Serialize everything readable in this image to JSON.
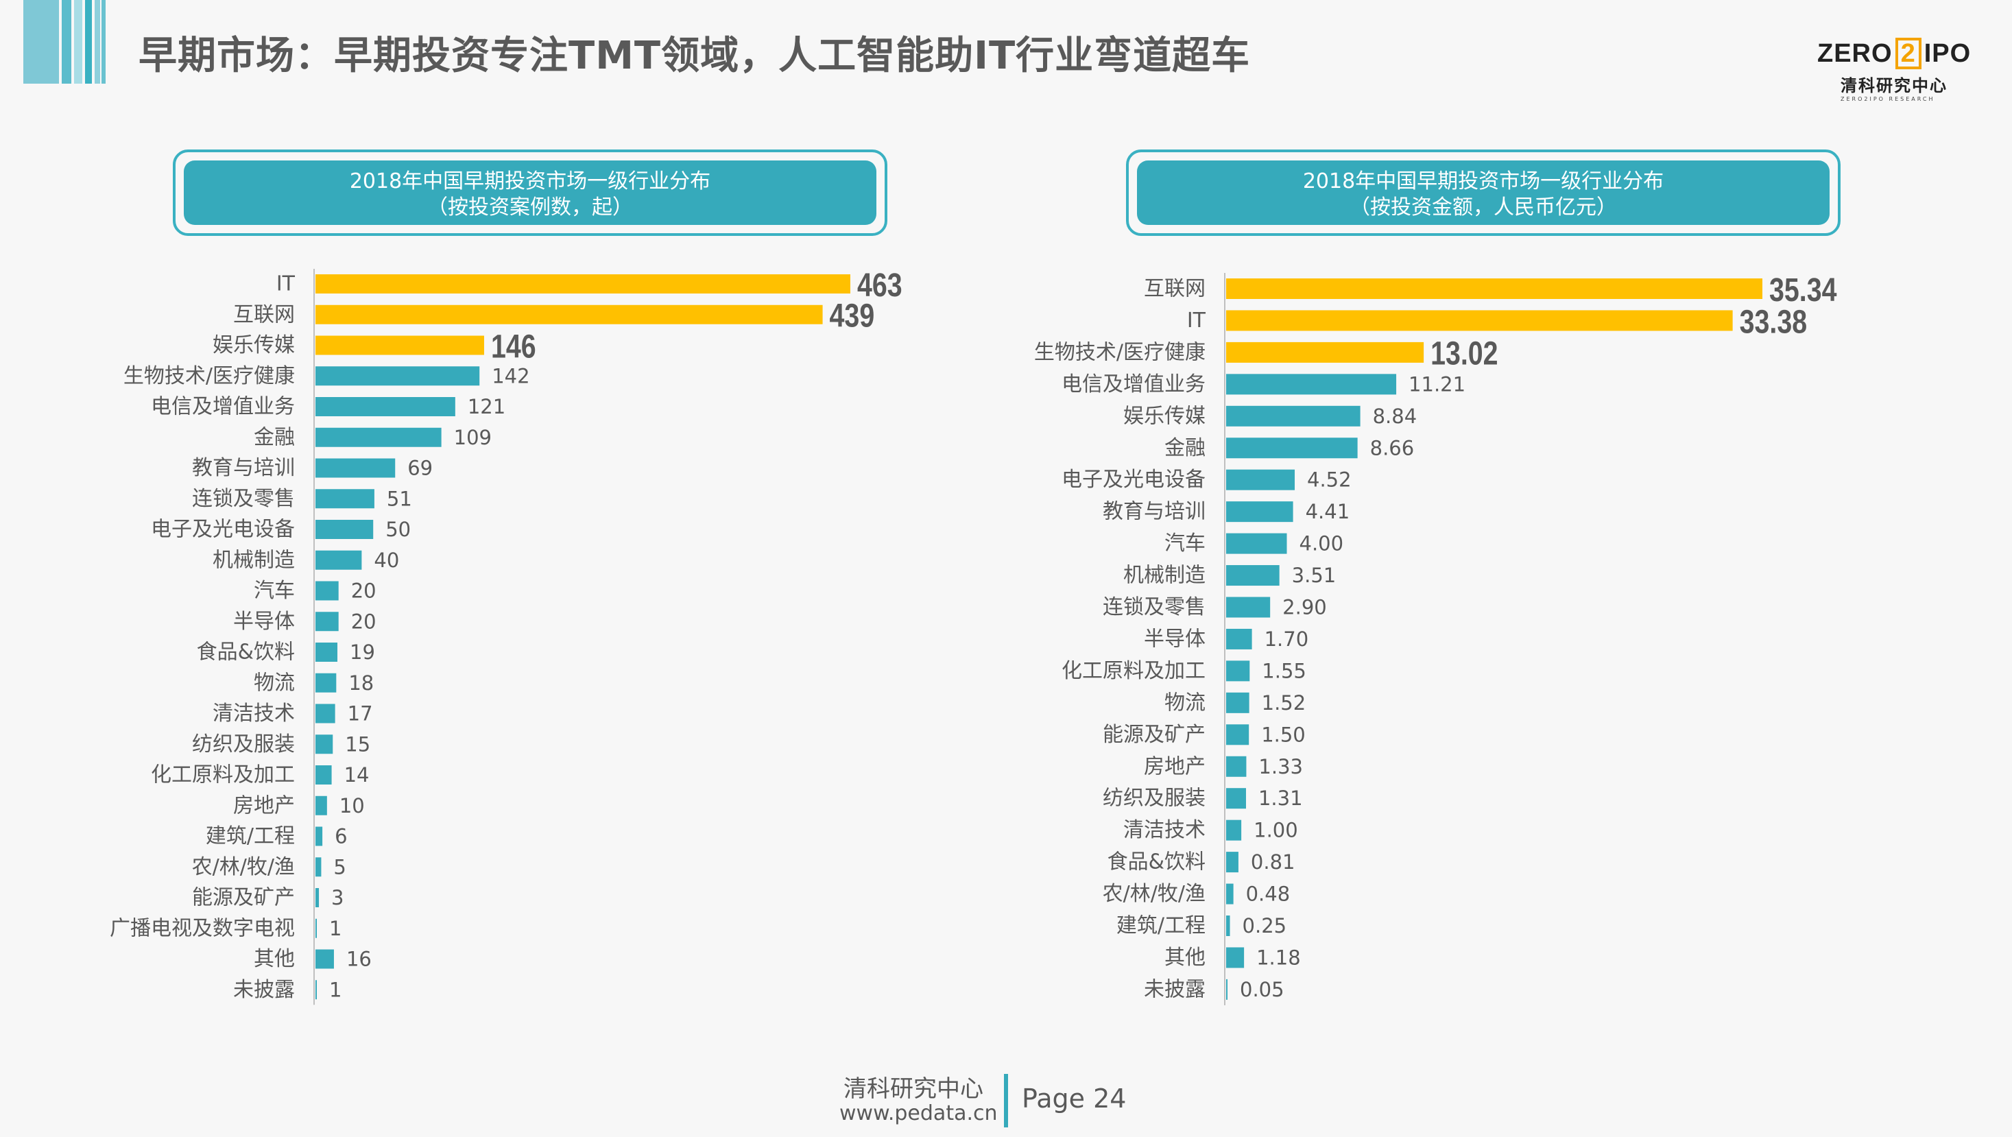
{
  "page": {
    "title": "早期市场：早期投资专注TMT领域，人工智能助IT行业弯道超车"
  },
  "logo": {
    "brand_left": "ZERO",
    "brand_mid": "2",
    "brand_right": "IPO",
    "brand_cn": "清科研究中心",
    "brand_en": "ZERO2IPO RESEARCH"
  },
  "colors": {
    "highlight": "#ffc000",
    "normal": "#36aabb",
    "header_border": "#3ab1c2",
    "stripes": [
      "#7fc8d6",
      "#5cbccc",
      "#a8dde6",
      "#3ab1c2",
      "#8ed0dc",
      "#6ac2d0"
    ]
  },
  "footer": {
    "org": "清科研究中心",
    "url": "www.pedata.cn",
    "page_label": "Page 24"
  },
  "chart_data": [
    {
      "type": "bar",
      "orientation": "horizontal",
      "title": "2018年中国早期投资市场一级行业分布",
      "subtitle": "（按投资案例数，起）",
      "categories": [
        "IT",
        "互联网",
        "娱乐传媒",
        "生物技术/医疗健康",
        "电信及增值业务",
        "金融",
        "教育与培训",
        "连锁及零售",
        "电子及光电设备",
        "机械制造",
        "汽车",
        "半导体",
        "食品&饮料",
        "物流",
        "清洁技术",
        "纺织及服装",
        "化工原料及加工",
        "房地产",
        "建筑/工程",
        "农/林/牧/渔",
        "能源及矿产",
        "广播电视及数字电视",
        "其他",
        "未披露"
      ],
      "values": [
        463,
        439,
        146,
        142,
        121,
        109,
        69,
        51,
        50,
        40,
        20,
        20,
        19,
        18,
        17,
        15,
        14,
        10,
        6,
        5,
        3,
        1,
        16,
        1
      ],
      "value_labels": [
        "463",
        "439",
        "146",
        "142",
        "121",
        "109",
        "69",
        "51",
        "50",
        "40",
        "20",
        "20",
        "19",
        "18",
        "17",
        "15",
        "14",
        "10",
        "6",
        "5",
        "3",
        "1",
        "16",
        "1"
      ],
      "highlighted": [
        true,
        true,
        true,
        false,
        false,
        false,
        false,
        false,
        false,
        false,
        false,
        false,
        false,
        false,
        false,
        false,
        false,
        false,
        false,
        false,
        false,
        false,
        false,
        false
      ],
      "xlim": [
        0,
        463
      ]
    },
    {
      "type": "bar",
      "orientation": "horizontal",
      "title": "2018年中国早期投资市场一级行业分布",
      "subtitle": "（按投资金额，人民币亿元）",
      "categories": [
        "互联网",
        "IT",
        "生物技术/医疗健康",
        "电信及增值业务",
        "娱乐传媒",
        "金融",
        "电子及光电设备",
        "教育与培训",
        "汽车",
        "机械制造",
        "连锁及零售",
        "半导体",
        "化工原料及加工",
        "物流",
        "能源及矿产",
        "房地产",
        "纺织及服装",
        "清洁技术",
        "食品&饮料",
        "农/林/牧/渔",
        "建筑/工程",
        "其他",
        "未披露"
      ],
      "values": [
        35.34,
        33.38,
        13.02,
        11.21,
        8.84,
        8.66,
        4.52,
        4.41,
        4.0,
        3.51,
        2.9,
        1.7,
        1.55,
        1.52,
        1.5,
        1.33,
        1.31,
        1.0,
        0.81,
        0.48,
        0.25,
        1.18,
        0.05
      ],
      "value_labels": [
        "35.34",
        "33.38",
        "13.02",
        "11.21",
        "8.84",
        "8.66",
        "4.52",
        "4.41",
        "4.00",
        "3.51",
        "2.90",
        "1.70",
        "1.55",
        "1.52",
        "1.50",
        "1.33",
        "1.31",
        "1.00",
        "0.81",
        "0.48",
        "0.25",
        "1.18",
        "0.05"
      ],
      "highlighted": [
        true,
        true,
        true,
        false,
        false,
        false,
        false,
        false,
        false,
        false,
        false,
        false,
        false,
        false,
        false,
        false,
        false,
        false,
        false,
        false,
        false,
        false,
        false
      ],
      "xlim": [
        0,
        35.34
      ]
    }
  ]
}
